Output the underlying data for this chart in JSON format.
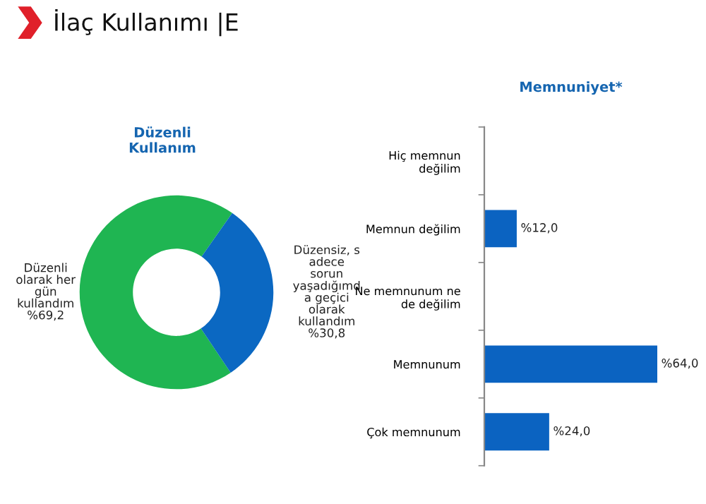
{
  "chart_data": [
    {
      "type": "donut",
      "title": "İlaç Kullanımı |E",
      "subtitle": "Düzenli\nKullanım",
      "categories": [
        "Düzenli\nolarak her\ngün\nkullandım",
        "Düzensiz, s\nadece\nsorun\nyaşadığımd\na geçici\nolarak\nkullandım"
      ],
      "values": [
        69.2,
        30.8
      ],
      "colors": [
        "#1fb552",
        "#0b68c2"
      ],
      "value_labels": [
        "%69,2",
        "%30,8"
      ]
    },
    {
      "type": "bar",
      "orientation": "horizontal",
      "title": "Memnuniyet*",
      "categories": [
        "Hiç memnun\ndeğilim",
        "Memnun değilim",
        "Ne memnunum ne\nde değilim",
        "Memnunum",
        "Çok memnunum"
      ],
      "values": [
        null,
        12.0,
        null,
        64.0,
        24.0
      ],
      "color": "#0b63c1",
      "value_labels": [
        null,
        "%12,0",
        null,
        "%64,0",
        "%24,0"
      ]
    }
  ]
}
